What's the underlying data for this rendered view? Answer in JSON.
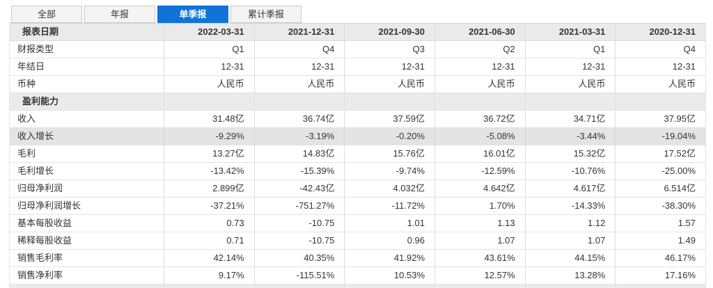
{
  "tabs": {
    "active_color": "#1173d8",
    "items": [
      {
        "id": "all",
        "label": "全部",
        "active": false
      },
      {
        "id": "annual",
        "label": "年报",
        "active": false
      },
      {
        "id": "single-quarter",
        "label": "单季报",
        "active": true
      },
      {
        "id": "cumulative-quarter",
        "label": "累计季报",
        "active": false
      }
    ]
  },
  "table": {
    "header": {
      "label": "报表日期",
      "values": [
        "2022-03-31",
        "2021-12-31",
        "2021-09-30",
        "2021-06-30",
        "2021-03-31",
        "2020-12-31"
      ]
    },
    "rows": [
      {
        "label": "财报类型",
        "style": "normal",
        "values": [
          "Q1",
          "Q4",
          "Q3",
          "Q2",
          "Q1",
          "Q4"
        ]
      },
      {
        "label": "年结日",
        "style": "normal",
        "values": [
          "12-31",
          "12-31",
          "12-31",
          "12-31",
          "12-31",
          "12-31"
        ]
      },
      {
        "label": "币种",
        "style": "normal",
        "values": [
          "人民币",
          "人民币",
          "人民币",
          "人民币",
          "人民币",
          "人民币"
        ]
      },
      {
        "label": "盈利能力",
        "style": "section",
        "values": [
          "",
          "",
          "",
          "",
          "",
          ""
        ]
      },
      {
        "label": "收入",
        "style": "normal",
        "values": [
          "31.48亿",
          "36.74亿",
          "37.59亿",
          "36.72亿",
          "34.71亿",
          "37.95亿"
        ]
      },
      {
        "label": "收入增长",
        "style": "highlight",
        "values": [
          "-9.29%",
          "-3.19%",
          "-0.20%",
          "-5.08%",
          "-3.44%",
          "-19.04%"
        ]
      },
      {
        "label": "毛利",
        "style": "normal",
        "values": [
          "13.27亿",
          "14.83亿",
          "15.76亿",
          "16.01亿",
          "15.32亿",
          "17.52亿"
        ]
      },
      {
        "label": "毛利增长",
        "style": "normal",
        "values": [
          "-13.42%",
          "-15.39%",
          "-9.74%",
          "-12.59%",
          "-10.76%",
          "-25.00%"
        ]
      },
      {
        "label": "归母净利润",
        "style": "normal",
        "values": [
          "2.899亿",
          "-42.43亿",
          "4.032亿",
          "4.642亿",
          "4.617亿",
          "6.514亿"
        ]
      },
      {
        "label": "归母净利润增长",
        "style": "normal",
        "values": [
          "-37.21%",
          "-751.27%",
          "-11.72%",
          "1.70%",
          "-14.33%",
          "-38.30%"
        ]
      },
      {
        "label": "基本每股收益",
        "style": "normal",
        "values": [
          "0.73",
          "-10.75",
          "1.01",
          "1.13",
          "1.12",
          "1.57"
        ]
      },
      {
        "label": "稀释每股收益",
        "style": "normal",
        "values": [
          "0.71",
          "-10.75",
          "0.96",
          "1.07",
          "1.07",
          "1.49"
        ]
      },
      {
        "label": "销售毛利率",
        "style": "normal",
        "values": [
          "42.14%",
          "40.35%",
          "41.92%",
          "43.61%",
          "44.15%",
          "46.17%"
        ]
      },
      {
        "label": "销售净利率",
        "style": "normal",
        "values": [
          "9.17%",
          "-115.51%",
          "10.53%",
          "12.57%",
          "13.28%",
          "17.16%"
        ]
      }
    ]
  }
}
